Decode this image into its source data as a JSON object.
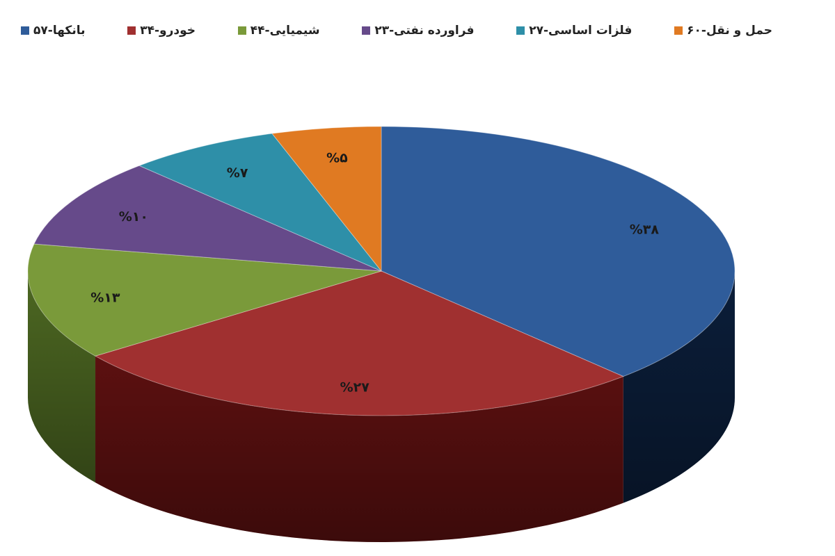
{
  "chart_data": {
    "type": "pie",
    "legend_position": "top",
    "three_d": true,
    "series": [
      {
        "name": "بانکها-۵۷",
        "value": 38,
        "label": "%۳۸",
        "color": "#2f5c9a",
        "side_color": "#0b1e3a"
      },
      {
        "name": "خودرو-۳۴",
        "value": 27,
        "label": "%۲۷",
        "color": "#a03030",
        "side_color": "#5c1010"
      },
      {
        "name": "شیمیایی-۴۴",
        "value": 13,
        "label": "%۱۳",
        "color": "#7a9a3a",
        "side_color": "#4d6822"
      },
      {
        "name": "فراورده نفتی-۲۳",
        "value": 10,
        "label": "%۱۰",
        "color": "#664a8a",
        "side_color": "#3e2a58"
      },
      {
        "name": "فلزات اساسی-۲۷",
        "value": 7,
        "label": "%۷",
        "color": "#2e8fa8",
        "side_color": "#1a5a6a"
      },
      {
        "name": "حمل و نقل-۶۰",
        "value": 5,
        "label": "%۵",
        "color": "#e07a22",
        "side_color": "#8a4510"
      }
    ]
  }
}
